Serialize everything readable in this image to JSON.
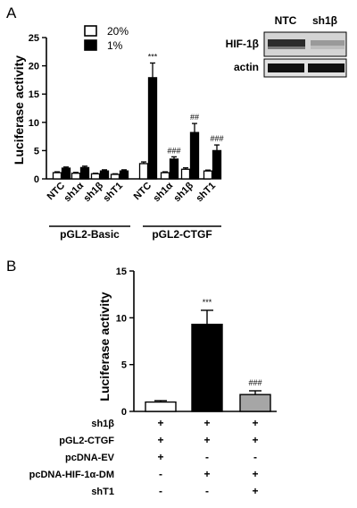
{
  "chart_data": [
    {
      "panel": "A",
      "type": "bar",
      "ylabel": "Luciferase activity",
      "ylim": [
        0,
        25
      ],
      "yticks": [
        0,
        5,
        10,
        15,
        20,
        25
      ],
      "categories": [
        "NTC",
        "sh1α",
        "sh1β",
        "shT1",
        "NTC",
        "sh1α",
        "sh1β",
        "shT1"
      ],
      "groups": [
        {
          "label": "pGL2-Basic",
          "categories": [
            "NTC",
            "sh1α",
            "sh1β",
            "shT1"
          ]
        },
        {
          "label": "pGL2-CTGF",
          "categories": [
            "NTC",
            "sh1α",
            "sh1β",
            "shT1"
          ]
        }
      ],
      "legend": {
        "placement": "top-left"
      },
      "series": [
        {
          "name": "20%",
          "color": "#ffffff",
          "values": [
            1.1,
            1.0,
            0.9,
            0.8,
            2.7,
            1.1,
            1.7,
            1.4
          ],
          "errors": [
            0.15,
            0.15,
            0.1,
            0.1,
            0.3,
            0.15,
            0.25,
            0.15
          ]
        },
        {
          "name": "1%",
          "color": "#000000",
          "values": [
            1.9,
            2.0,
            1.4,
            1.4,
            17.9,
            3.5,
            8.2,
            5.0
          ],
          "errors": [
            0.2,
            0.25,
            0.2,
            0.2,
            2.6,
            0.4,
            1.6,
            1.0
          ]
        }
      ],
      "annotations": [
        {
          "category_index": 4,
          "series": 1,
          "text": "***"
        },
        {
          "category_index": 5,
          "series": 1,
          "text": "###"
        },
        {
          "category_index": 6,
          "series": 1,
          "text": "##"
        },
        {
          "category_index": 7,
          "series": 1,
          "text": "###"
        }
      ],
      "blot": {
        "lanes": [
          "NTC",
          "sh1β"
        ],
        "rows": [
          "HIF-1β",
          "actin"
        ]
      }
    },
    {
      "panel": "B",
      "type": "bar",
      "ylabel": "Luciferase activity",
      "ylim": [
        0,
        15
      ],
      "yticks": [
        0,
        5,
        10,
        15
      ],
      "bars": [
        {
          "value": 1.0,
          "error": 0.15,
          "color": "#ffffff"
        },
        {
          "value": 9.3,
          "error": 1.5,
          "color": "#000000"
        },
        {
          "value": 1.8,
          "error": 0.4,
          "color": "#a6a6a6"
        }
      ],
      "annotations": [
        {
          "bar_index": 1,
          "text": "***"
        },
        {
          "bar_index": 2,
          "text": "###"
        }
      ],
      "conditions": [
        {
          "label": "sh1β",
          "signs": [
            "+",
            "+",
            "+"
          ]
        },
        {
          "label": "pGL2-CTGF",
          "signs": [
            "+",
            "+",
            "+"
          ]
        },
        {
          "label": "pcDNA-EV",
          "signs": [
            "+",
            "-",
            "-"
          ]
        },
        {
          "label": "pcDNA-HIF-1α-DM",
          "signs": [
            "-",
            "+",
            "+"
          ]
        },
        {
          "label": "shT1",
          "signs": [
            "-",
            "-",
            "+"
          ]
        }
      ]
    }
  ]
}
